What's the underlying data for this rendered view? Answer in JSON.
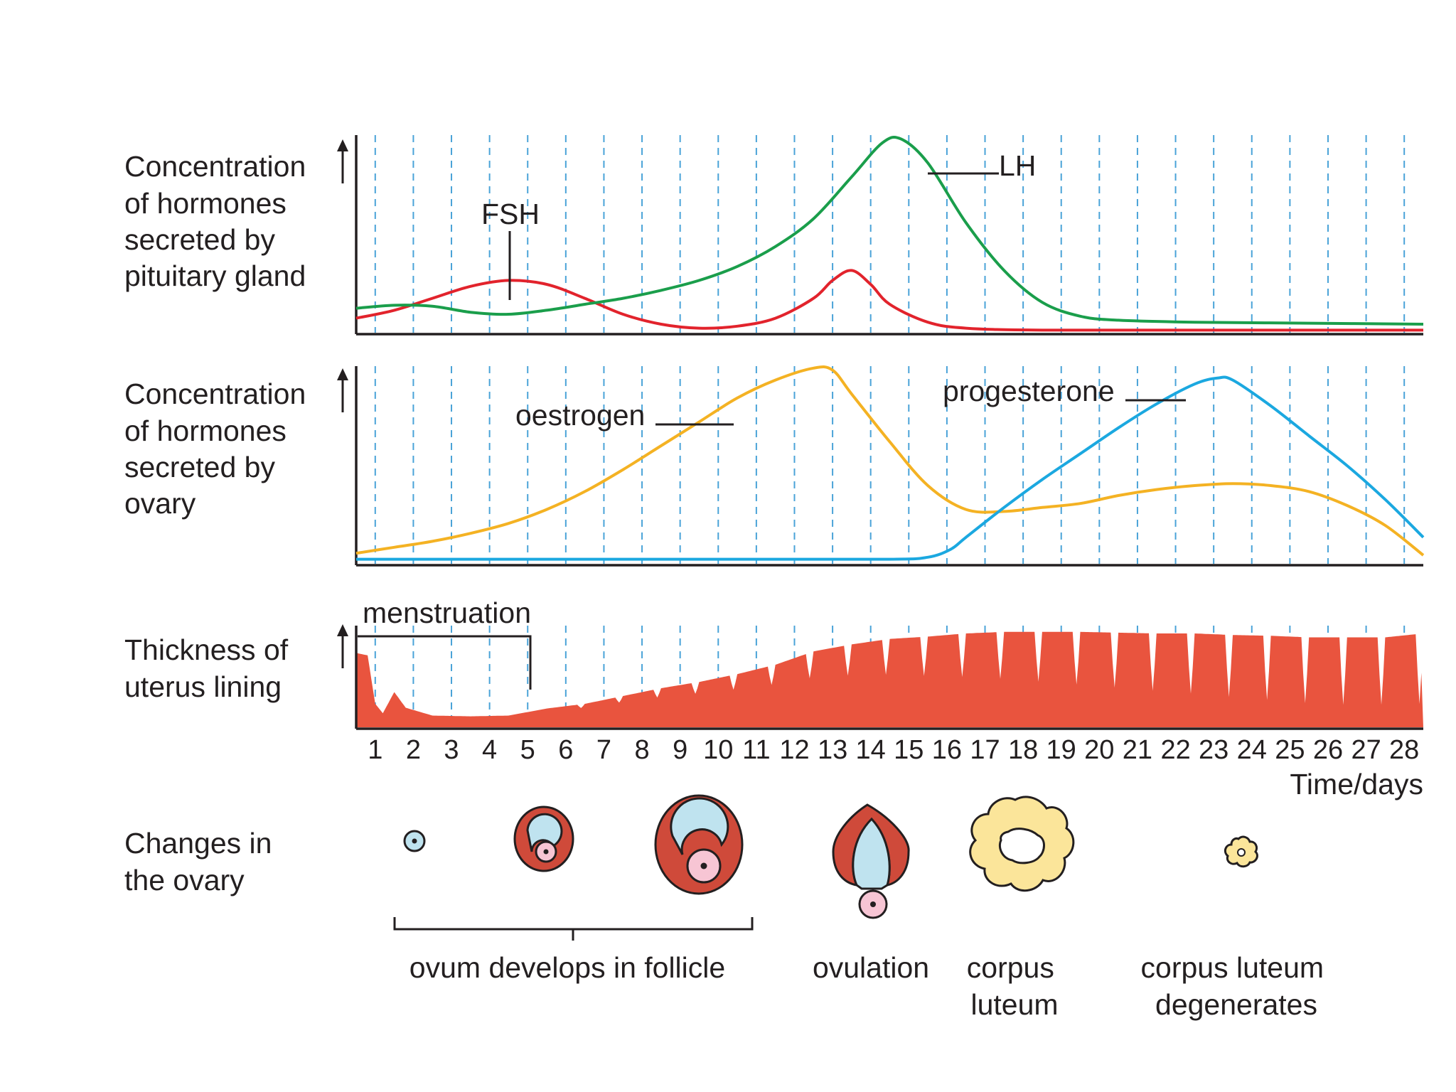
{
  "panels": {
    "pituitary": {
      "label_lines": [
        "Concentration",
        "of hormones",
        "secreted by",
        "pituitary gland"
      ],
      "series": [
        {
          "name": "FSH",
          "color": "#e2232c",
          "points": [
            [
              0,
              0.08
            ],
            [
              1,
              0.12
            ],
            [
              2,
              0.18
            ],
            [
              3,
              0.24
            ],
            [
              4,
              0.27
            ],
            [
              5,
              0.25
            ],
            [
              6,
              0.18
            ],
            [
              7,
              0.1
            ],
            [
              8,
              0.05
            ],
            [
              9,
              0.03
            ],
            [
              10,
              0.04
            ],
            [
              11,
              0.08
            ],
            [
              12,
              0.18
            ],
            [
              12.5,
              0.27
            ],
            [
              13,
              0.32
            ],
            [
              13.5,
              0.25
            ],
            [
              14,
              0.15
            ],
            [
              15,
              0.06
            ],
            [
              16,
              0.03
            ],
            [
              18,
              0.02
            ],
            [
              22,
              0.02
            ],
            [
              28,
              0.02
            ]
          ]
        },
        {
          "name": "LH",
          "color": "#1a9e4b",
          "points": [
            [
              0,
              0.13
            ],
            [
              1,
              0.145
            ],
            [
              2,
              0.14
            ],
            [
              3,
              0.11
            ],
            [
              4,
              0.1
            ],
            [
              5,
              0.12
            ],
            [
              6,
              0.15
            ],
            [
              7,
              0.18
            ],
            [
              8,
              0.22
            ],
            [
              9,
              0.27
            ],
            [
              10,
              0.34
            ],
            [
              11,
              0.44
            ],
            [
              12,
              0.58
            ],
            [
              13,
              0.79
            ],
            [
              13.8,
              0.96
            ],
            [
              14.3,
              0.98
            ],
            [
              15,
              0.86
            ],
            [
              16,
              0.56
            ],
            [
              17,
              0.32
            ],
            [
              18,
              0.16
            ],
            [
              19,
              0.09
            ],
            [
              20,
              0.07
            ],
            [
              22,
              0.06
            ],
            [
              25,
              0.055
            ],
            [
              28,
              0.05
            ]
          ]
        }
      ]
    },
    "ovary_hormones": {
      "label_lines": [
        "Concentration",
        "of hormones",
        "secreted by",
        "ovary"
      ],
      "series": [
        {
          "name": "oestrogen",
          "color": "#f4b223",
          "points": [
            [
              0,
              0.06
            ],
            [
              1,
              0.09
            ],
            [
              2,
              0.12
            ],
            [
              3,
              0.16
            ],
            [
              4,
              0.21
            ],
            [
              5,
              0.28
            ],
            [
              6,
              0.37
            ],
            [
              7,
              0.48
            ],
            [
              8,
              0.6
            ],
            [
              9,
              0.72
            ],
            [
              10,
              0.84
            ],
            [
              11,
              0.93
            ],
            [
              12,
              0.99
            ],
            [
              12.5,
              0.98
            ],
            [
              13,
              0.86
            ],
            [
              14,
              0.62
            ],
            [
              15,
              0.4
            ],
            [
              16,
              0.28
            ],
            [
              17,
              0.27
            ],
            [
              18,
              0.29
            ],
            [
              19,
              0.31
            ],
            [
              20,
              0.35
            ],
            [
              21,
              0.38
            ],
            [
              22,
              0.4
            ],
            [
              23,
              0.41
            ],
            [
              24,
              0.4
            ],
            [
              25,
              0.37
            ],
            [
              26,
              0.3
            ],
            [
              27,
              0.2
            ],
            [
              28,
              0.05
            ]
          ]
        },
        {
          "name": "progesterone",
          "color": "#1ba8e0",
          "points": [
            [
              0,
              0.03
            ],
            [
              5,
              0.03
            ],
            [
              10,
              0.03
            ],
            [
              14,
              0.03
            ],
            [
              15,
              0.04
            ],
            [
              15.6,
              0.08
            ],
            [
              16,
              0.14
            ],
            [
              17,
              0.29
            ],
            [
              18,
              0.43
            ],
            [
              19,
              0.56
            ],
            [
              20,
              0.69
            ],
            [
              21,
              0.81
            ],
            [
              22,
              0.91
            ],
            [
              22.6,
              0.94
            ],
            [
              23,
              0.93
            ],
            [
              24,
              0.8
            ],
            [
              25,
              0.65
            ],
            [
              26,
              0.5
            ],
            [
              27,
              0.33
            ],
            [
              28,
              0.14
            ]
          ]
        }
      ]
    },
    "uterus": {
      "label_lines": [
        "Thickness of",
        "uterus lining"
      ],
      "fill_color": "#e9543e",
      "thickness_profile": [
        [
          0,
          0.95
        ],
        [
          0.3,
          0.92
        ],
        [
          0.5,
          0.3
        ],
        [
          0.7,
          0.18
        ],
        [
          1,
          0.45
        ],
        [
          1.3,
          0.25
        ],
        [
          2,
          0.15
        ],
        [
          3,
          0.14
        ],
        [
          4,
          0.15
        ],
        [
          5,
          0.24
        ],
        [
          6,
          0.3
        ],
        [
          7,
          0.4
        ],
        [
          8,
          0.5
        ],
        [
          9,
          0.58
        ],
        [
          10,
          0.68
        ],
        [
          11,
          0.8
        ],
        [
          12,
          0.97
        ],
        [
          13,
          1.06
        ],
        [
          14,
          1.13
        ],
        [
          15,
          1.16
        ],
        [
          16,
          1.2
        ],
        [
          17,
          1.22
        ],
        [
          18,
          1.22
        ],
        [
          19,
          1.22
        ],
        [
          20,
          1.21
        ],
        [
          21,
          1.2
        ],
        [
          22,
          1.2
        ],
        [
          23,
          1.18
        ],
        [
          24,
          1.17
        ],
        [
          25,
          1.15
        ],
        [
          26,
          1.15
        ],
        [
          27,
          1.15
        ],
        [
          28,
          1.2
        ]
      ]
    }
  },
  "annotations": {
    "fsh": "FSH",
    "lh": "LH",
    "oestrogen": "oestrogen",
    "progesterone": "progesterone",
    "menstruation": "menstruation"
  },
  "axis": {
    "ticks": [
      "1",
      "2",
      "3",
      "4",
      "5",
      "6",
      "7",
      "8",
      "9",
      "10",
      "11",
      "12",
      "13",
      "14",
      "15",
      "16",
      "17",
      "18",
      "19",
      "20",
      "21",
      "22",
      "23",
      "24",
      "25",
      "26",
      "27",
      "28"
    ],
    "time_label": "Time/days",
    "axis_color": "#231f20",
    "grid_color": "#4aa3d8"
  },
  "ovary_changes": {
    "label_lines": [
      "Changes in",
      "the ovary"
    ],
    "stage_labels": {
      "ovum_develops": "ovum develops in follicle",
      "ovulation": "ovulation",
      "corpus_luteum": [
        "corpus",
        "luteum"
      ],
      "degenerates": [
        "corpus luteum",
        "degenerates"
      ]
    },
    "colors": {
      "follicle_wall": "#cf4a3a",
      "fluid": "#bfe3ef",
      "ovum": "#f7c5d4",
      "corpus_luteum": "#fbe59a"
    }
  }
}
